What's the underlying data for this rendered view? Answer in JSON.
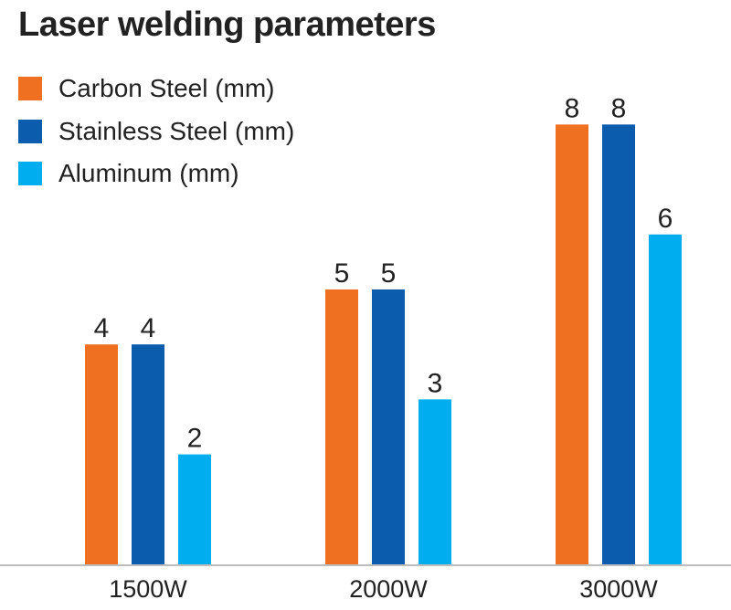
{
  "chart_data": {
    "type": "bar",
    "title": "Laser welding parameters",
    "categories": [
      "1500W",
      "2000W",
      "3000W"
    ],
    "series": [
      {
        "name": "Carbon Steel (mm)",
        "color": "#f07022",
        "values": [
          4,
          5,
          8
        ]
      },
      {
        "name": "Stainless Steel (mm)",
        "color": "#0b5cad",
        "values": [
          4,
          5,
          8
        ]
      },
      {
        "name": "Aluminum (mm)",
        "color": "#00aeef",
        "values": [
          2,
          3,
          6
        ]
      }
    ],
    "xlabel": "",
    "ylabel": "",
    "ylim": [
      0,
      9.6
    ],
    "grid": false,
    "legend": "top-left",
    "data_labels": true,
    "axis_color": "#bdbdbd"
  }
}
